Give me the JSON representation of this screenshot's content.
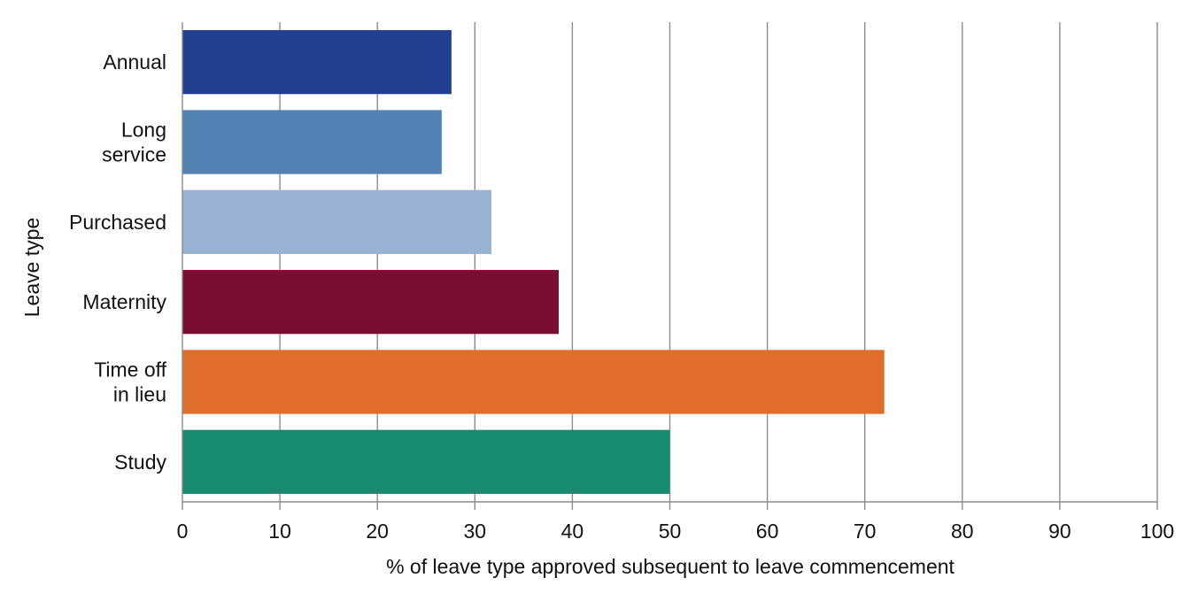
{
  "chart_data": {
    "type": "bar",
    "orientation": "horizontal",
    "categories": [
      [
        "Annual"
      ],
      [
        "Long",
        "service"
      ],
      [
        "Purchased"
      ],
      [
        "Maternity"
      ],
      [
        "Time off",
        "in lieu"
      ],
      [
        "Study"
      ]
    ],
    "values": [
      27.6,
      26.6,
      31.7,
      38.6,
      72.0,
      50.0
    ],
    "colors": [
      "#233f90",
      "#5281b3",
      "#9ab3d2",
      "#780f33",
      "#e06d29",
      "#168b6e"
    ],
    "xlabel": "% of leave type approved subsequent to leave commencement",
    "ylabel": "Leave type",
    "xlim": [
      0,
      100
    ],
    "xticks": [
      0,
      10,
      20,
      30,
      40,
      50,
      60,
      70,
      80,
      90,
      100
    ],
    "grid": true,
    "legend": "none"
  }
}
